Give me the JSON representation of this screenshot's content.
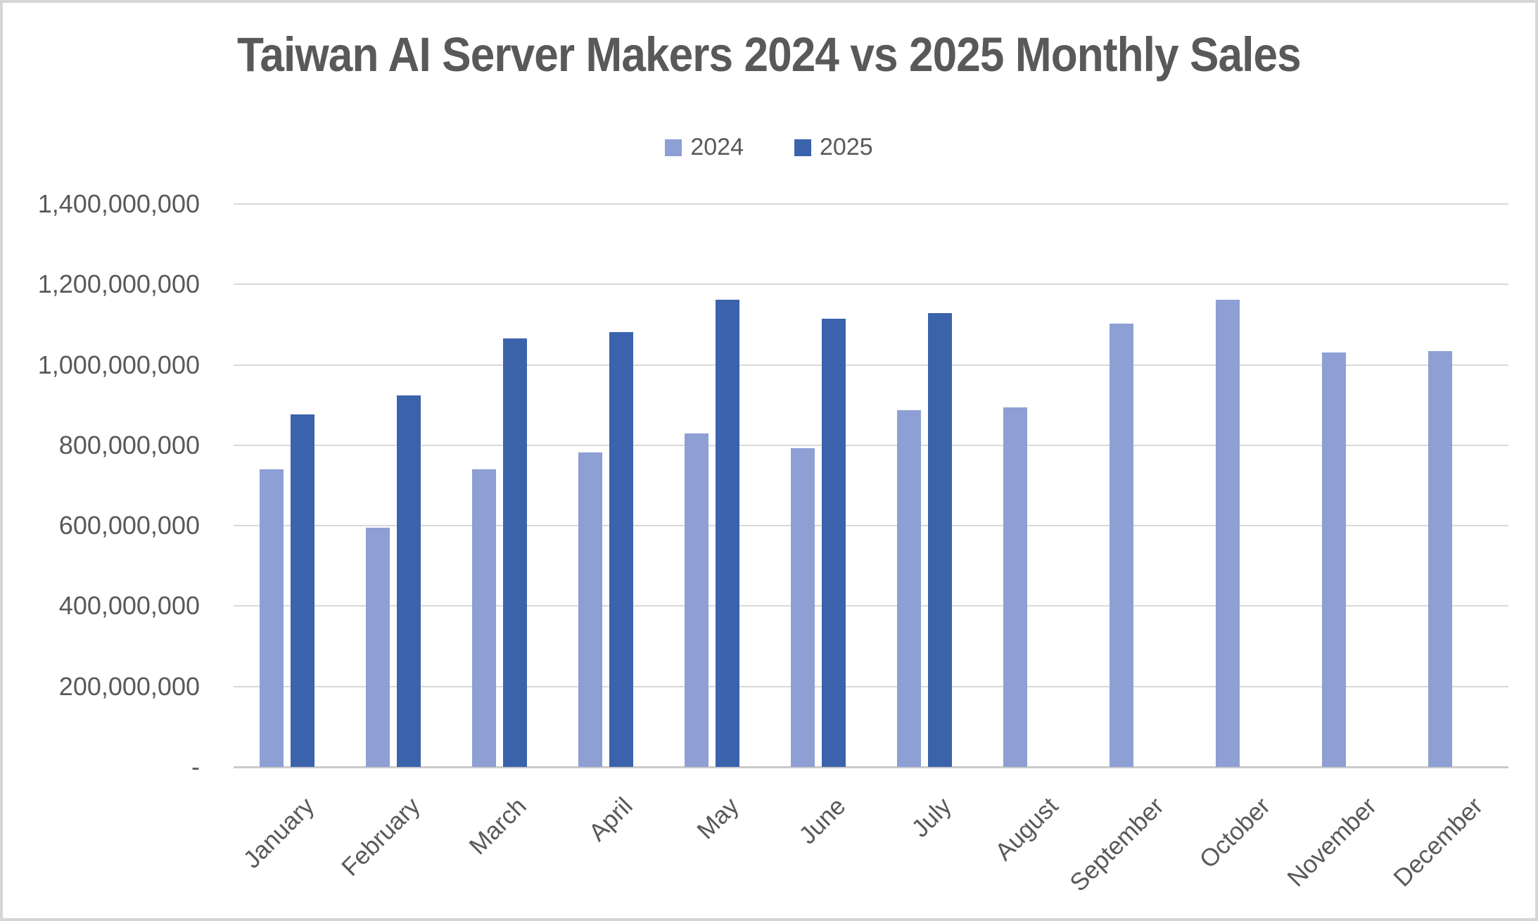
{
  "frame": {
    "background": "#ffffff",
    "border_color": "#d6d6d6"
  },
  "chart_data": {
    "type": "bar",
    "title": "Taiwan AI Server Makers 2024 vs 2025 Monthly Sales",
    "xlabel": "",
    "ylabel": "",
    "categories": [
      "January",
      "February",
      "March",
      "April",
      "May",
      "June",
      "July",
      "August",
      "September",
      "October",
      "November",
      "December"
    ],
    "series": [
      {
        "name": "2024",
        "color": "#8e9fd4",
        "values": [
          740000000,
          595000000,
          740000000,
          782000000,
          830000000,
          793000000,
          887000000,
          894000000,
          1102000000,
          1162000000,
          1031000000,
          1034000000
        ]
      },
      {
        "name": "2025",
        "color": "#3b63ac",
        "values": [
          876000000,
          924000000,
          1066000000,
          1082000000,
          1162000000,
          1114000000,
          1129000000,
          null,
          null,
          null,
          null,
          null
        ]
      }
    ],
    "ylim": [
      0,
      1400000000
    ],
    "ytick_step": 200000000,
    "ytick_labels": [
      "-",
      "200,000,000",
      "400,000,000",
      "600,000,000",
      "800,000,000",
      "1,000,000,000",
      "1,200,000,000",
      "1,400,000,000"
    ],
    "grid": true,
    "legend_position": "top-center",
    "colors": {
      "gridline": "#d9d9d9",
      "zero_axis": "#cbcbcb",
      "text": "#595959",
      "title": "#595959"
    }
  }
}
